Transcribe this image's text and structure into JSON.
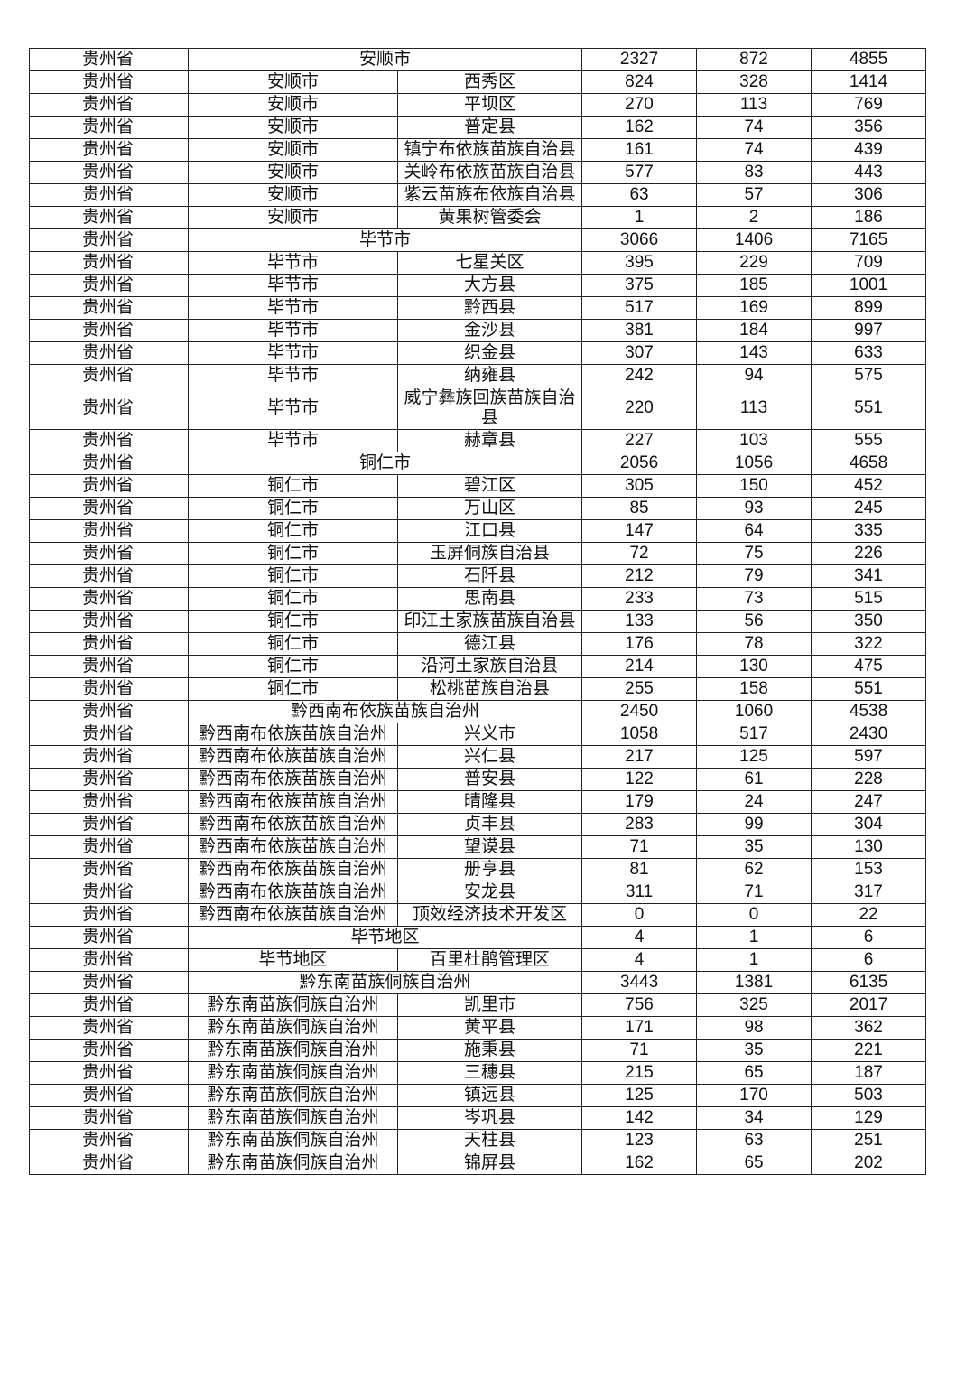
{
  "table": {
    "rows": [
      [
        "贵州省",
        "安顺市",
        null,
        "2327",
        "872",
        "4855"
      ],
      [
        "贵州省",
        "安顺市",
        "西秀区",
        "824",
        "328",
        "1414"
      ],
      [
        "贵州省",
        "安顺市",
        "平坝区",
        "270",
        "113",
        "769"
      ],
      [
        "贵州省",
        "安顺市",
        "普定县",
        "162",
        "74",
        "356"
      ],
      [
        "贵州省",
        "安顺市",
        "镇宁布依族苗族自治县",
        "161",
        "74",
        "439"
      ],
      [
        "贵州省",
        "安顺市",
        "关岭布依族苗族自治县",
        "577",
        "83",
        "443"
      ],
      [
        "贵州省",
        "安顺市",
        "紫云苗族布依族自治县",
        "63",
        "57",
        "306"
      ],
      [
        "贵州省",
        "安顺市",
        "黄果树管委会",
        "1",
        "2",
        "186"
      ],
      [
        "贵州省",
        "毕节市",
        null,
        "3066",
        "1406",
        "7165"
      ],
      [
        "贵州省",
        "毕节市",
        "七星关区",
        "395",
        "229",
        "709"
      ],
      [
        "贵州省",
        "毕节市",
        "大方县",
        "375",
        "185",
        "1001"
      ],
      [
        "贵州省",
        "毕节市",
        "黔西县",
        "517",
        "169",
        "899"
      ],
      [
        "贵州省",
        "毕节市",
        "金沙县",
        "381",
        "184",
        "997"
      ],
      [
        "贵州省",
        "毕节市",
        "织金县",
        "307",
        "143",
        "633"
      ],
      [
        "贵州省",
        "毕节市",
        "纳雍县",
        "242",
        "94",
        "575"
      ],
      [
        "贵州省",
        "毕节市",
        "威宁彝族回族苗族自治县",
        "220",
        "113",
        "551"
      ],
      [
        "贵州省",
        "毕节市",
        "赫章县",
        "227",
        "103",
        "555"
      ],
      [
        "贵州省",
        "铜仁市",
        null,
        "2056",
        "1056",
        "4658"
      ],
      [
        "贵州省",
        "铜仁市",
        "碧江区",
        "305",
        "150",
        "452"
      ],
      [
        "贵州省",
        "铜仁市",
        "万山区",
        "85",
        "93",
        "245"
      ],
      [
        "贵州省",
        "铜仁市",
        "江口县",
        "147",
        "64",
        "335"
      ],
      [
        "贵州省",
        "铜仁市",
        "玉屏侗族自治县",
        "72",
        "75",
        "226"
      ],
      [
        "贵州省",
        "铜仁市",
        "石阡县",
        "212",
        "79",
        "341"
      ],
      [
        "贵州省",
        "铜仁市",
        "思南县",
        "233",
        "73",
        "515"
      ],
      [
        "贵州省",
        "铜仁市",
        "印江土家族苗族自治县",
        "133",
        "56",
        "350"
      ],
      [
        "贵州省",
        "铜仁市",
        "德江县",
        "176",
        "78",
        "322"
      ],
      [
        "贵州省",
        "铜仁市",
        "沿河土家族自治县",
        "214",
        "130",
        "475"
      ],
      [
        "贵州省",
        "铜仁市",
        "松桃苗族自治县",
        "255",
        "158",
        "551"
      ],
      [
        "贵州省",
        "黔西南布依族苗族自治州",
        null,
        "2450",
        "1060",
        "4538"
      ],
      [
        "贵州省",
        "黔西南布依族苗族自治州",
        "兴义市",
        "1058",
        "517",
        "2430"
      ],
      [
        "贵州省",
        "黔西南布依族苗族自治州",
        "兴仁县",
        "217",
        "125",
        "597"
      ],
      [
        "贵州省",
        "黔西南布依族苗族自治州",
        "普安县",
        "122",
        "61",
        "228"
      ],
      [
        "贵州省",
        "黔西南布依族苗族自治州",
        "晴隆县",
        "179",
        "24",
        "247"
      ],
      [
        "贵州省",
        "黔西南布依族苗族自治州",
        "贞丰县",
        "283",
        "99",
        "304"
      ],
      [
        "贵州省",
        "黔西南布依族苗族自治州",
        "望谟县",
        "71",
        "35",
        "130"
      ],
      [
        "贵州省",
        "黔西南布依族苗族自治州",
        "册亨县",
        "81",
        "62",
        "153"
      ],
      [
        "贵州省",
        "黔西南布依族苗族自治州",
        "安龙县",
        "311",
        "71",
        "317"
      ],
      [
        "贵州省",
        "黔西南布依族苗族自治州",
        "顶效经济技术开发区",
        "0",
        "0",
        "22"
      ],
      [
        "贵州省",
        "毕节地区",
        null,
        "4",
        "1",
        "6"
      ],
      [
        "贵州省",
        "毕节地区",
        "百里杜鹃管理区",
        "4",
        "1",
        "6"
      ],
      [
        "贵州省",
        "黔东南苗族侗族自治州",
        null,
        "3443",
        "1381",
        "6135"
      ],
      [
        "贵州省",
        "黔东南苗族侗族自治州",
        "凯里市",
        "756",
        "325",
        "2017"
      ],
      [
        "贵州省",
        "黔东南苗族侗族自治州",
        "黄平县",
        "171",
        "98",
        "362"
      ],
      [
        "贵州省",
        "黔东南苗族侗族自治州",
        "施秉县",
        "71",
        "35",
        "221"
      ],
      [
        "贵州省",
        "黔东南苗族侗族自治州",
        "三穗县",
        "215",
        "65",
        "187"
      ],
      [
        "贵州省",
        "黔东南苗族侗族自治州",
        "镇远县",
        "125",
        "170",
        "503"
      ],
      [
        "贵州省",
        "黔东南苗族侗族自治州",
        "岑巩县",
        "142",
        "34",
        "129"
      ],
      [
        "贵州省",
        "黔东南苗族侗族自治州",
        "天柱县",
        "123",
        "63",
        "251"
      ],
      [
        "贵州省",
        "黔东南苗族侗族自治州",
        "锦屏县",
        "162",
        "65",
        "202"
      ]
    ]
  }
}
